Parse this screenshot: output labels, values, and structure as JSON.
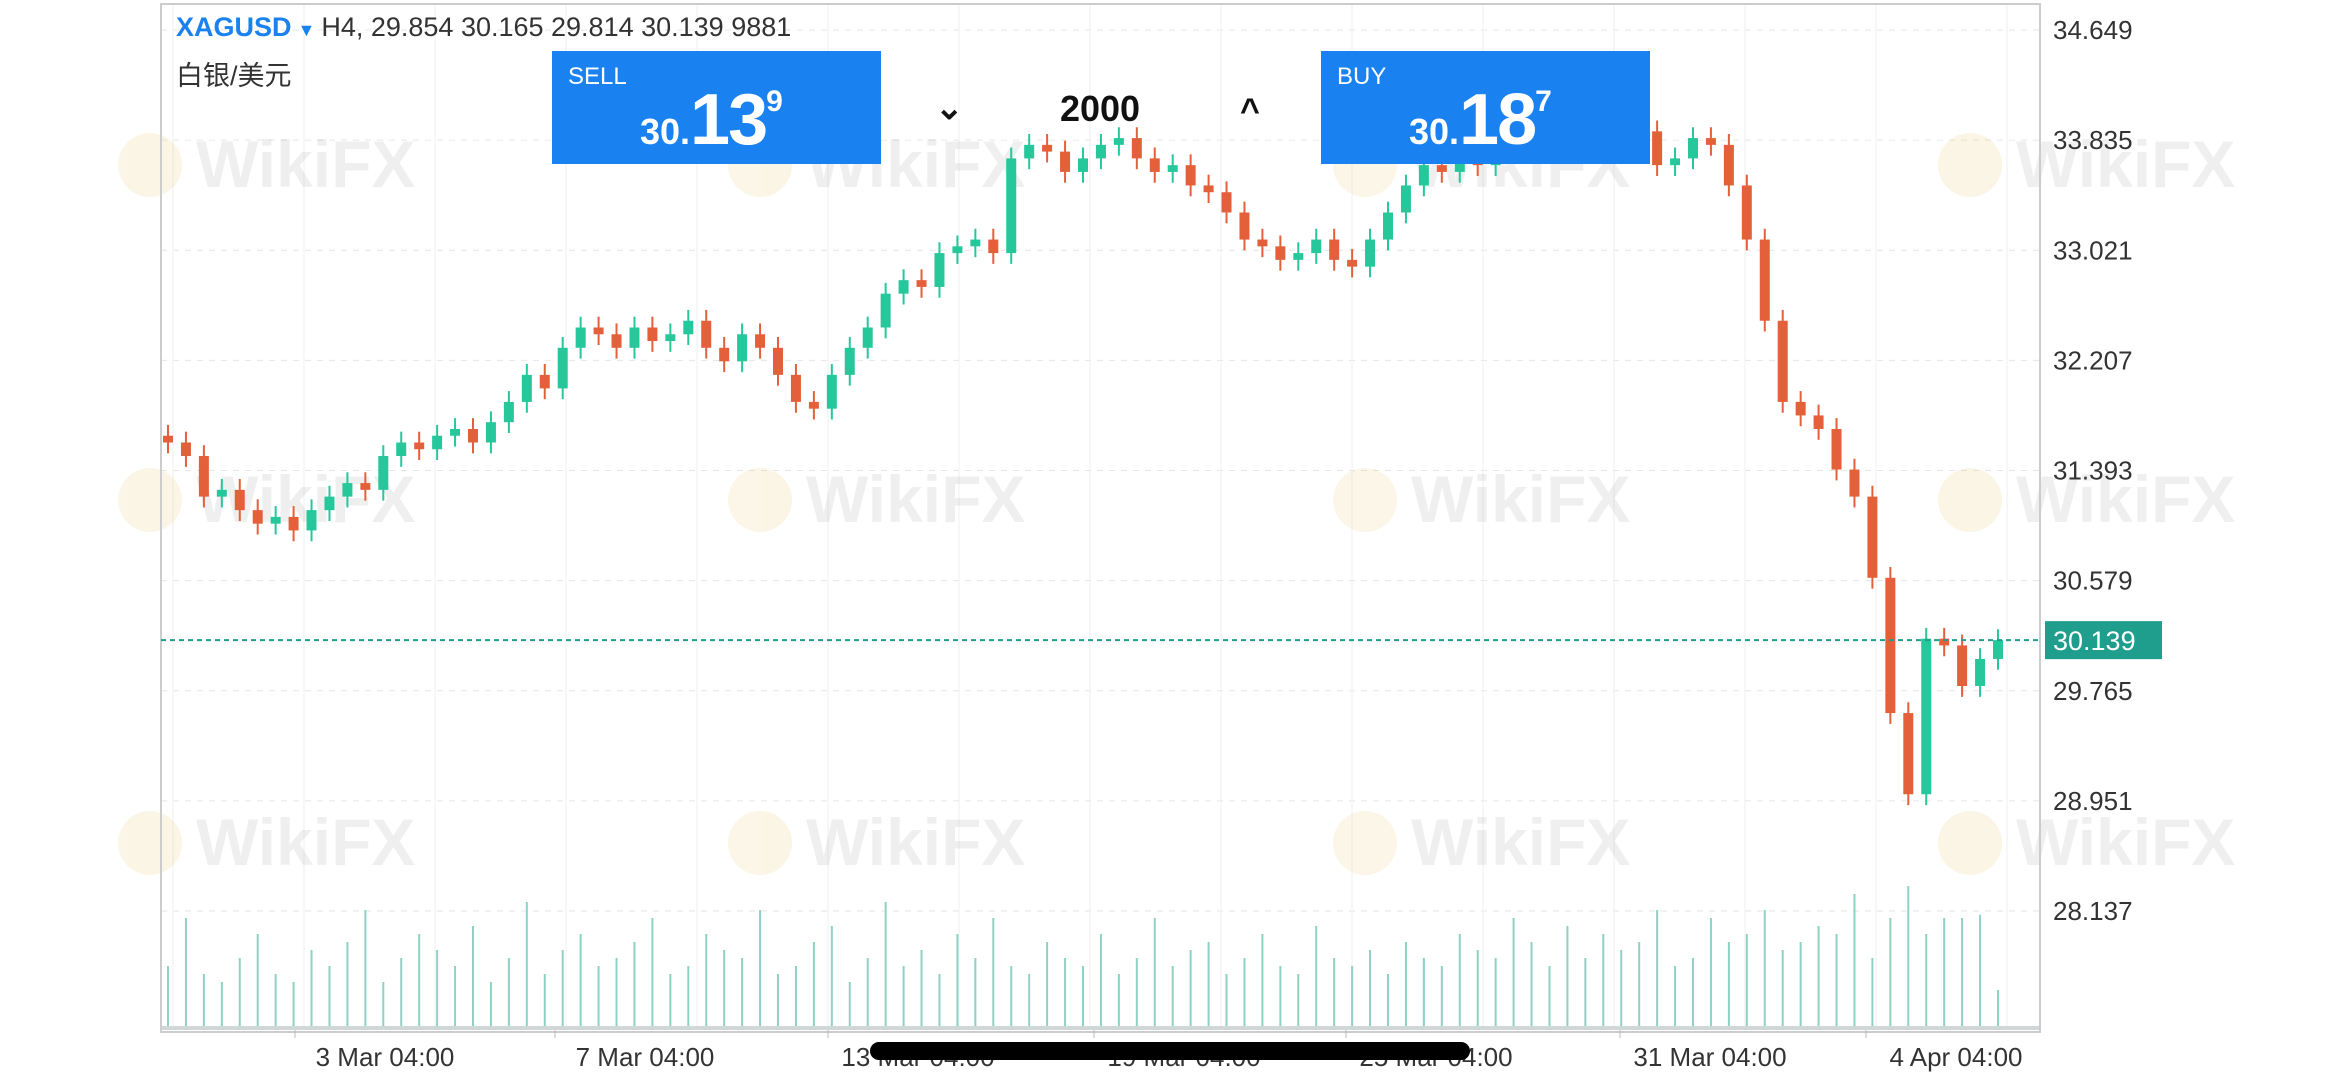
{
  "header": {
    "symbol": "XAGUSD",
    "dropdown_icon": "triangle-down-icon",
    "ohlc_text": "H4, 29.854 30.165 29.814 30.139 9881",
    "subtitle": "白银/美元"
  },
  "trade": {
    "sell": {
      "label": "SELL",
      "price_a": "30.",
      "price_b": "13",
      "price_c": "9"
    },
    "buy": {
      "label": "BUY",
      "price_a": "30.",
      "price_b": "18",
      "price_c": "7"
    },
    "quantity": "2000",
    "decrease_icon": "chevron-down-icon",
    "increase_icon": "chevron-up-icon"
  },
  "watermark": "WikiFX",
  "colors": {
    "up": "#26c79b",
    "down": "#e4603a",
    "accent": "#1a82f0",
    "last_price": "#1f9e8e",
    "volume": "#8fd1c4"
  },
  "chart_data": {
    "type": "candlestick",
    "timeframe": "H4",
    "y_ticks": [
      "34.649",
      "33.835",
      "33.021",
      "32.207",
      "31.393",
      "30.579",
      "29.765",
      "28.951",
      "28.137"
    ],
    "ylim": [
      28.137,
      34.649
    ],
    "x_ticks": [
      "3 Mar 04:00",
      "7 Mar 04:00",
      "13 Mar 04:00",
      "19 Mar 04:00",
      "25 Mar 04:00",
      "31 Mar 04:00",
      "4 Apr 04:00"
    ],
    "last_price": "30.139",
    "grid": true,
    "close": [
      31.6,
      31.5,
      31.2,
      31.25,
      31.1,
      31.0,
      31.05,
      30.95,
      31.1,
      31.2,
      31.3,
      31.25,
      31.5,
      31.6,
      31.55,
      31.65,
      31.7,
      31.6,
      31.75,
      31.9,
      32.1,
      32.0,
      32.3,
      32.45,
      32.4,
      32.3,
      32.45,
      32.35,
      32.4,
      32.5,
      32.3,
      32.2,
      32.4,
      32.3,
      32.1,
      31.9,
      31.85,
      32.1,
      32.3,
      32.45,
      32.7,
      32.8,
      32.75,
      33.0,
      33.05,
      33.1,
      33.0,
      33.7,
      33.8,
      33.75,
      33.6,
      33.7,
      33.8,
      33.85,
      33.7,
      33.6,
      33.65,
      33.5,
      33.45,
      33.3,
      33.1,
      33.05,
      32.95,
      33.0,
      33.1,
      32.95,
      32.9,
      33.1,
      33.3,
      33.5,
      33.65,
      33.6,
      33.7,
      33.65,
      33.8,
      33.9,
      34.1,
      34.2,
      33.95,
      33.85,
      34.0,
      34.05,
      33.9,
      33.65,
      33.7,
      33.85,
      33.8,
      33.5,
      33.1,
      32.5,
      31.9,
      31.8,
      31.7,
      31.4,
      31.2,
      30.6,
      29.6,
      29.0,
      30.15,
      30.1,
      29.8,
      30.0,
      30.139
    ],
    "volume": [
      40,
      70,
      35,
      30,
      45,
      60,
      35,
      30,
      50,
      40,
      55,
      75,
      30,
      45,
      60,
      50,
      40,
      65,
      30,
      45,
      80,
      35,
      50,
      60,
      40,
      45,
      55,
      70,
      35,
      40,
      60,
      50,
      45,
      75,
      35,
      40,
      55,
      65,
      30,
      45,
      80,
      40,
      50,
      35,
      60,
      45,
      70,
      40,
      35,
      55,
      45,
      40,
      60,
      35,
      45,
      70,
      40,
      50,
      55,
      35,
      45,
      60,
      40,
      35,
      65,
      45,
      40,
      50,
      35,
      55,
      45,
      40,
      60,
      50,
      45,
      70,
      55,
      40,
      65,
      45,
      60,
      50,
      55,
      75,
      40,
      45,
      70,
      55,
      60,
      75,
      50,
      55,
      65,
      60,
      85,
      45,
      70,
      90,
      60,
      70,
      70,
      72,
      25
    ]
  }
}
